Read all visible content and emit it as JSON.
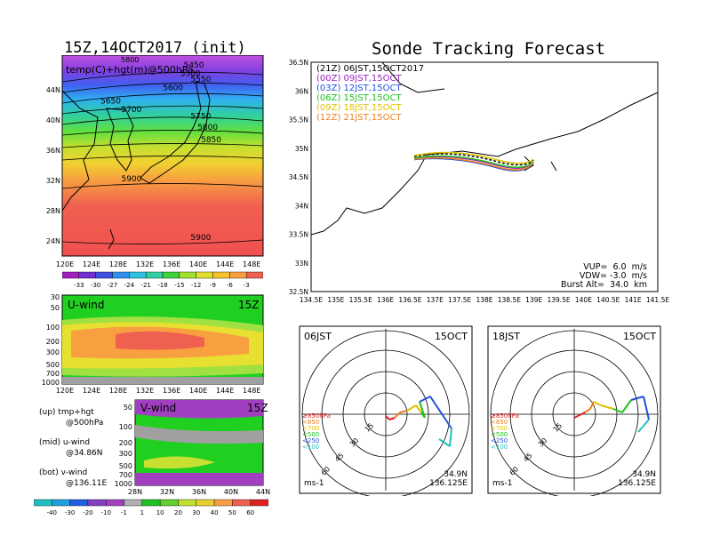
{
  "left_title": "15Z,14OCT2017 (init)",
  "right_title": "Sonde Tracking Forecast",
  "upper_map": {
    "label": "temp(C)+hgt(m)@500hPa",
    "top_tag": "5800",
    "lon_ticks": [
      "120E",
      "124E",
      "128E",
      "132E",
      "136E",
      "140E",
      "144E",
      "148E"
    ],
    "lat_ticks": [
      "24N",
      "28N",
      "32N",
      "36N",
      "40N",
      "44N"
    ],
    "contours": [
      {
        "text": "5450",
        "lon": 139,
        "lat": 44.5
      },
      {
        "text": "5500",
        "lon": 138.5,
        "lat": 43.5
      },
      {
        "text": "5550",
        "lon": 140,
        "lat": 42.8
      },
      {
        "text": "5600",
        "lon": 136,
        "lat": 41.8
      },
      {
        "text": "5650",
        "lon": 127,
        "lat": 40.2
      },
      {
        "text": "5700",
        "lon": 130,
        "lat": 39.2
      },
      {
        "text": "5750",
        "lon": 140,
        "lat": 38.4
      },
      {
        "text": "5800",
        "lon": 141,
        "lat": 37.1
      },
      {
        "text": "5850",
        "lon": 141.5,
        "lat": 35.6
      },
      {
        "text": "5900",
        "lon": 130,
        "lat": 30.9
      },
      {
        "text": "5900",
        "lon": 140,
        "lat": 23.9
      }
    ],
    "colorbar_ticks": [
      "-33",
      "-30",
      "-27",
      "-24",
      "-21",
      "-18",
      "-15",
      "-12",
      "-9",
      "-6",
      "-3"
    ]
  },
  "u_wind": {
    "label": "U-wind",
    "time": "15Z",
    "p_ticks": [
      "30",
      "50",
      "100",
      "200",
      "300",
      "500",
      "700",
      "1000"
    ],
    "lon_ticks": [
      "120E",
      "124E",
      "128E",
      "132E",
      "136E",
      "140E",
      "144E",
      "148E"
    ]
  },
  "v_wind": {
    "label": "V-wind",
    "time": "15Z",
    "p_ticks": [
      "50",
      "100",
      "200",
      "300",
      "500",
      "700",
      "1000"
    ],
    "lat_ticks": [
      "28N",
      "32N",
      "36N",
      "40N",
      "44N"
    ],
    "colorbar_ticks": [
      "-40",
      "-30",
      "-20",
      "-10",
      "-1",
      "1",
      "10",
      "20",
      "30",
      "40",
      "50",
      "60"
    ]
  },
  "legend_notes": [
    {
      "line1": "(up) tmp+hgt",
      "line2": "@500hPa"
    },
    {
      "line1": "(mid) u-wind",
      "line2": "@34.86N"
    },
    {
      "line1": "(bot) v-wind",
      "line2": "@136.11E"
    }
  ],
  "track_map": {
    "lon_ticks": [
      "134.5E",
      "135E",
      "135.5E",
      "136E",
      "136.5E",
      "137E",
      "137.5E",
      "138E",
      "138.5E",
      "139E",
      "139.5E",
      "140E",
      "140.5E",
      "141E",
      "141.5E"
    ],
    "lat_ticks": [
      "32.5N",
      "33N",
      "33.5N",
      "34N",
      "34.5N",
      "35N",
      "35.5N",
      "36N",
      "36.5N"
    ],
    "legend": [
      {
        "text": "(21Z) 06JST,15OCT2017",
        "color": "#000000"
      },
      {
        "text": "(00Z) 09JST,15OCT",
        "color": "#a020c0"
      },
      {
        "text": "(03Z) 12JST,15OCT",
        "color": "#2050e0"
      },
      {
        "text": "(06Z) 15JST,15OCT",
        "color": "#20c020"
      },
      {
        "text": "(09Z) 18JST,15OCT",
        "color": "#e0c000"
      },
      {
        "text": "(12Z) 21JST,15OCT",
        "color": "#f08020"
      }
    ],
    "params": [
      "VUP=  6.0  m/s",
      "VDW= -3.0  m/s",
      "Burst Alt=  34.0  km"
    ]
  },
  "hodographs": [
    {
      "time": "06JST",
      "date": "15OCT",
      "lat": "34.9N",
      "lon": "136.125E",
      "unit": "ms-1"
    },
    {
      "time": "18JST",
      "date": "15OCT",
      "lat": "34.9N",
      "lon": "136.125E",
      "unit": "ms-1"
    }
  ],
  "hodo_rings": [
    "15",
    "30",
    "45",
    "60"
  ],
  "hodo_levels": [
    {
      "text": "≥850hPa",
      "color": "#e02020"
    },
    {
      "text": "<850",
      "color": "#f08020"
    },
    {
      "text": "<700",
      "color": "#e0c000"
    },
    {
      "text": "<500",
      "color": "#20c020"
    },
    {
      "text": "<250",
      "color": "#2050e0"
    },
    {
      "text": "<100",
      "color": "#20c0c0"
    }
  ]
}
